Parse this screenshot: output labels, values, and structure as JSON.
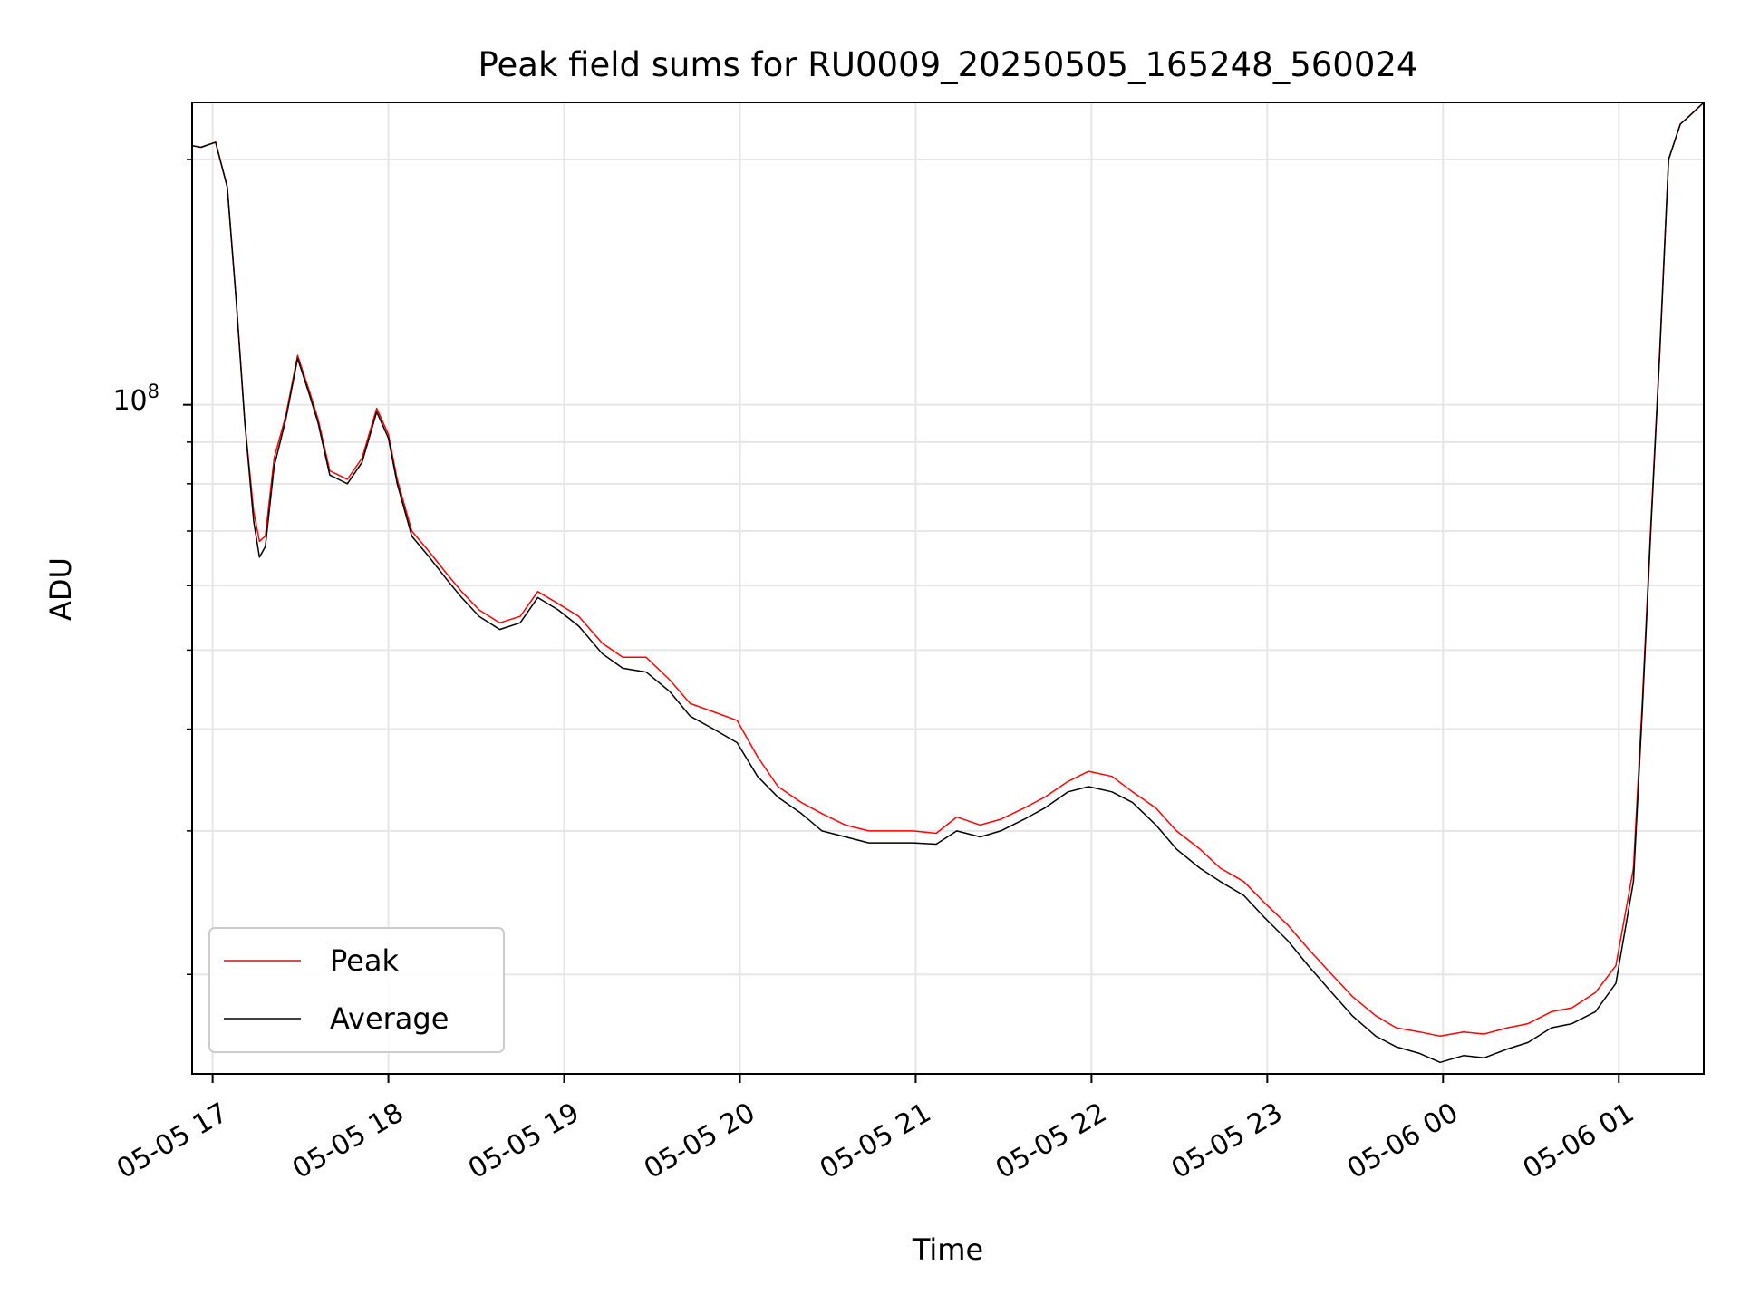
{
  "chart_data": {
    "type": "line",
    "title": "Peak field sums for RU0009_20250505_165248_560024",
    "xlabel": "Time",
    "ylabel": "ADU",
    "yscale": "log",
    "grid": true,
    "legend_position": "lower left",
    "xlim": [
      "2025-05-05 16:53",
      "2025-05-06 01:29"
    ],
    "ylim": [
      15100000,
      235000000
    ],
    "x_ticks": [
      {
        "t": "2025-05-05 17:00",
        "label": "05-05 17"
      },
      {
        "t": "2025-05-05 18:00",
        "label": "05-05 18"
      },
      {
        "t": "2025-05-05 19:00",
        "label": "05-05 19"
      },
      {
        "t": "2025-05-05 20:00",
        "label": "05-05 20"
      },
      {
        "t": "2025-05-05 21:00",
        "label": "05-05 21"
      },
      {
        "t": "2025-05-05 22:00",
        "label": "05-05 22"
      },
      {
        "t": "2025-05-05 23:00",
        "label": "05-05 23"
      },
      {
        "t": "2025-05-06 00:00",
        "label": "05-06 00"
      },
      {
        "t": "2025-05-06 01:00",
        "label": "05-06 01"
      }
    ],
    "y_major_tick": {
      "value": 100000000,
      "label_base": "10",
      "label_exp": "8"
    },
    "y_minor_ticks": [
      20000000,
      30000000,
      40000000,
      50000000,
      60000000,
      70000000,
      80000000,
      90000000,
      200000000
    ],
    "x": [
      "2025-05-05 16:53",
      "2025-05-05 16:56",
      "2025-05-05 17:01",
      "2025-05-05 17:05",
      "2025-05-05 17:08",
      "2025-05-05 17:11",
      "2025-05-05 17:14",
      "2025-05-05 17:16",
      "2025-05-05 17:18",
      "2025-05-05 17:21",
      "2025-05-05 17:25",
      "2025-05-05 17:29",
      "2025-05-05 17:33",
      "2025-05-05 17:36",
      "2025-05-05 17:40",
      "2025-05-05 17:43",
      "2025-05-05 17:46",
      "2025-05-05 17:51",
      "2025-05-05 17:56",
      "2025-05-05 18:00",
      "2025-05-05 18:03",
      "2025-05-05 18:08",
      "2025-05-05 18:14",
      "2025-05-05 18:20",
      "2025-05-05 18:25",
      "2025-05-05 18:31",
      "2025-05-05 18:38",
      "2025-05-05 18:45",
      "2025-05-05 18:51",
      "2025-05-05 18:58",
      "2025-05-05 19:05",
      "2025-05-05 19:13",
      "2025-05-05 19:20",
      "2025-05-05 19:28",
      "2025-05-05 19:36",
      "2025-05-05 19:43",
      "2025-05-05 19:51",
      "2025-05-05 19:59",
      "2025-05-05 20:06",
      "2025-05-05 20:13",
      "2025-05-05 20:21",
      "2025-05-05 20:28",
      "2025-05-05 20:36",
      "2025-05-05 20:44",
      "2025-05-05 20:51",
      "2025-05-05 20:59",
      "2025-05-05 21:07",
      "2025-05-05 21:14",
      "2025-05-05 21:22",
      "2025-05-05 21:29",
      "2025-05-05 21:37",
      "2025-05-05 21:44",
      "2025-05-05 21:52",
      "2025-05-05 21:59",
      "2025-05-05 22:07",
      "2025-05-05 22:14",
      "2025-05-05 22:22",
      "2025-05-05 22:29",
      "2025-05-05 22:37",
      "2025-05-05 22:44",
      "2025-05-05 22:52",
      "2025-05-05 22:59",
      "2025-05-05 23:07",
      "2025-05-05 23:14",
      "2025-05-05 23:22",
      "2025-05-05 23:29",
      "2025-05-05 23:37",
      "2025-05-05 23:44",
      "2025-05-05 23:52",
      "2025-05-05 23:59",
      "2025-05-06 00:07",
      "2025-05-06 00:14",
      "2025-05-06 00:22",
      "2025-05-06 00:29",
      "2025-05-06 00:37",
      "2025-05-06 00:44",
      "2025-05-06 00:52",
      "2025-05-06 00:59",
      "2025-05-06 01:05",
      "2025-05-06 01:08",
      "2025-05-06 01:11",
      "2025-05-06 01:14",
      "2025-05-06 01:17",
      "2025-05-06 01:21",
      "2025-05-06 01:24",
      "2025-05-06 01:29"
    ],
    "series": [
      {
        "name": "Peak",
        "color": "#ff0000",
        "values": [
          208000000,
          207000000,
          210000000,
          185000000,
          135000000,
          95000000,
          74000000,
          68000000,
          69000000,
          86000000,
          97000000,
          115000000,
          104000000,
          96000000,
          83000000,
          82000000,
          81000000,
          86000000,
          99000000,
          92000000,
          81000000,
          70000000,
          66000000,
          62000000,
          59000000,
          56000000,
          54000000,
          55000000,
          59000000,
          57000000,
          55000000,
          51000000,
          49000000,
          49000000,
          46000000,
          43000000,
          42000000,
          41000000,
          37000000,
          34000000,
          32500000,
          31500000,
          30500000,
          30000000,
          30000000,
          30000000,
          29800000,
          31200000,
          30500000,
          31000000,
          32000000,
          33000000,
          34500000,
          35500000,
          35000000,
          33500000,
          32000000,
          30000000,
          28500000,
          27000000,
          26000000,
          24500000,
          23000000,
          21500000,
          20000000,
          18800000,
          17800000,
          17200000,
          17000000,
          16800000,
          17000000,
          16900000,
          17200000,
          17400000,
          18000000,
          18200000,
          19000000,
          20500000,
          27000000,
          43000000,
          72000000,
          117000000,
          200000000,
          221000000,
          226000000,
          235000000
        ]
      },
      {
        "name": "Average",
        "color": "#000000",
        "values": [
          208000000,
          207000000,
          210000000,
          185000000,
          135000000,
          95000000,
          72000000,
          65000000,
          67000000,
          84000000,
          96000000,
          114000000,
          103000000,
          95000000,
          82000000,
          81000000,
          80000000,
          85000000,
          98000000,
          91000000,
          80000000,
          69000000,
          65000000,
          61000000,
          58000000,
          55000000,
          53000000,
          54000000,
          58000000,
          56000000,
          53500000,
          49500000,
          47500000,
          47000000,
          44500000,
          41500000,
          40000000,
          38500000,
          35000000,
          33000000,
          31500000,
          30000000,
          29500000,
          29000000,
          29000000,
          29000000,
          28900000,
          30000000,
          29500000,
          30000000,
          31000000,
          32000000,
          33500000,
          34000000,
          33500000,
          32500000,
          30500000,
          28500000,
          27000000,
          26000000,
          25000000,
          23500000,
          22000000,
          20500000,
          19000000,
          17800000,
          16800000,
          16300000,
          16000000,
          15600000,
          15900000,
          15800000,
          16200000,
          16500000,
          17200000,
          17400000,
          18000000,
          19500000,
          26000000,
          42000000,
          71000000,
          116000000,
          200000000,
          221000000,
          226000000,
          235000000
        ]
      }
    ]
  }
}
